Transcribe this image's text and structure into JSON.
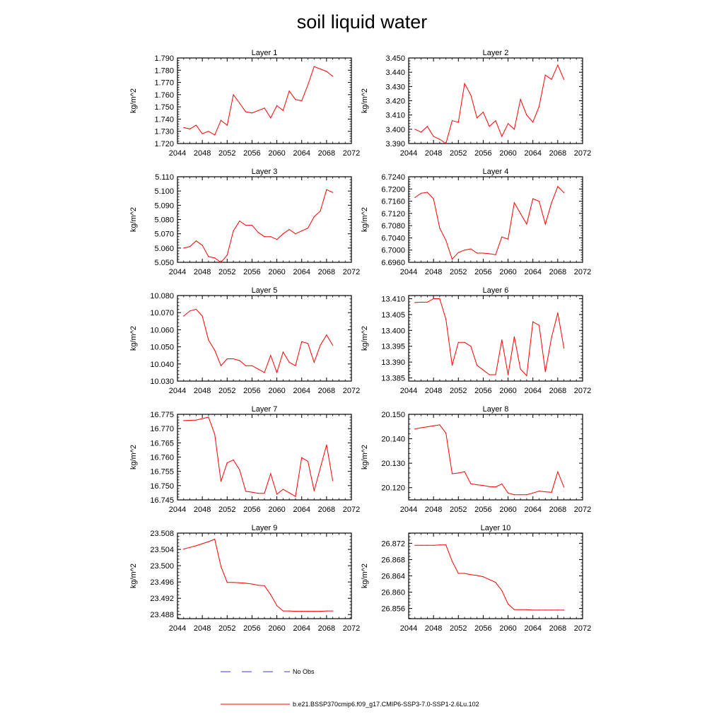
{
  "figure": {
    "title": "soil liquid water",
    "legend": [
      {
        "label": "No Obs",
        "style": "dashed",
        "color": "#3b3bd6"
      },
      {
        "label": "b.e21.BSSP370cmip6.f09_g17.CMIP6-SSP3-7.0-SSP1-2.6Lu.102",
        "style": "solid",
        "color": "#ff0000"
      }
    ]
  },
  "chart_data": [
    {
      "type": "line",
      "title": "Layer 1",
      "ylabel": "kg/m^2",
      "xlim": [
        2044,
        2072
      ],
      "ylim": [
        1.72,
        1.79
      ],
      "xticks": [
        "2044",
        "2048",
        "2052",
        "2056",
        "2060",
        "2064",
        "2068",
        "2072"
      ],
      "yticks": [
        "1.720",
        "1.730",
        "1.740",
        "1.750",
        "1.760",
        "1.770",
        "1.780",
        "1.790"
      ],
      "x": [
        2045,
        2046,
        2047,
        2048,
        2049,
        2050,
        2051,
        2052,
        2053,
        2054,
        2055,
        2056,
        2057,
        2058,
        2059,
        2060,
        2061,
        2062,
        2063,
        2064,
        2065,
        2066,
        2067,
        2068,
        2069
      ],
      "series": [
        {
          "values": [
            1.733,
            1.732,
            1.735,
            1.728,
            1.73,
            1.727,
            1.739,
            1.735,
            1.76,
            1.753,
            1.746,
            1.745,
            1.747,
            1.749,
            1.741,
            1.751,
            1.747,
            1.763,
            1.756,
            1.755,
            1.768,
            1.783,
            1.781,
            1.779,
            1.775
          ]
        }
      ]
    },
    {
      "type": "line",
      "title": "Layer 2",
      "ylabel": "kg/m^2",
      "xlim": [
        2044,
        2072
      ],
      "ylim": [
        3.39,
        3.45
      ],
      "xticks": [
        "2044",
        "2048",
        "2052",
        "2056",
        "2060",
        "2064",
        "2068",
        "2072"
      ],
      "yticks": [
        "3.390",
        "3.400",
        "3.410",
        "3.420",
        "3.430",
        "3.440",
        "3.450"
      ],
      "x": [
        2045,
        2046,
        2047,
        2048,
        2049,
        2050,
        2051,
        2052,
        2053,
        2054,
        2055,
        2056,
        2057,
        2058,
        2059,
        2060,
        2061,
        2062,
        2063,
        2064,
        2065,
        2066,
        2067,
        2068,
        2069
      ],
      "series": [
        {
          "values": [
            3.4,
            3.398,
            3.402,
            3.395,
            3.393,
            3.39,
            3.406,
            3.405,
            3.432,
            3.424,
            3.408,
            3.412,
            3.402,
            3.406,
            3.395,
            3.404,
            3.4,
            3.421,
            3.41,
            3.405,
            3.416,
            3.438,
            3.435,
            3.445,
            3.435
          ]
        }
      ]
    },
    {
      "type": "line",
      "title": "Layer 3",
      "ylabel": "kg/m^2",
      "xlim": [
        2044,
        2072
      ],
      "ylim": [
        5.05,
        5.11
      ],
      "xticks": [
        "2044",
        "2048",
        "2052",
        "2056",
        "2060",
        "2064",
        "2068",
        "2072"
      ],
      "yticks": [
        "5.050",
        "5.060",
        "5.070",
        "5.080",
        "5.090",
        "5.100",
        "5.110"
      ],
      "x": [
        2045,
        2046,
        2047,
        2048,
        2049,
        2050,
        2051,
        2052,
        2053,
        2054,
        2055,
        2056,
        2057,
        2058,
        2059,
        2060,
        2061,
        2062,
        2063,
        2064,
        2065,
        2066,
        2067,
        2068,
        2069
      ],
      "series": [
        {
          "values": [
            5.06,
            5.061,
            5.065,
            5.062,
            5.054,
            5.053,
            5.05,
            5.055,
            5.072,
            5.079,
            5.076,
            5.076,
            5.071,
            5.068,
            5.068,
            5.066,
            5.07,
            5.073,
            5.07,
            5.072,
            5.074,
            5.082,
            5.086,
            5.101,
            5.099
          ]
        }
      ]
    },
    {
      "type": "line",
      "title": "Layer 4",
      "ylabel": "kg/m^2",
      "xlim": [
        2044,
        2072
      ],
      "ylim": [
        6.696,
        6.724
      ],
      "xticks": [
        "2044",
        "2048",
        "2052",
        "2056",
        "2060",
        "2064",
        "2068",
        "2072"
      ],
      "yticks": [
        "6.6960",
        "6.7000",
        "6.7040",
        "6.7080",
        "6.7120",
        "6.7160",
        "6.7200",
        "6.7240"
      ],
      "x": [
        2045,
        2046,
        2047,
        2048,
        2049,
        2050,
        2051,
        2052,
        2053,
        2054,
        2055,
        2056,
        2057,
        2058,
        2059,
        2060,
        2061,
        2062,
        2063,
        2064,
        2065,
        2066,
        2067,
        2068,
        2069
      ],
      "series": [
        {
          "values": [
            6.7172,
            6.7186,
            6.7189,
            6.7168,
            6.7072,
            6.7032,
            6.697,
            6.6992,
            6.7,
            6.7004,
            6.699,
            6.699,
            6.6988,
            6.6985,
            6.7043,
            6.7036,
            6.7155,
            6.712,
            6.7085,
            6.7168,
            6.716,
            6.7085,
            6.7155,
            6.7208,
            6.7188
          ]
        }
      ]
    },
    {
      "type": "line",
      "title": "Layer 5",
      "ylabel": "kg/m^2",
      "xlim": [
        2044,
        2072
      ],
      "ylim": [
        10.03,
        10.08
      ],
      "xticks": [
        "2044",
        "2048",
        "2052",
        "2056",
        "2060",
        "2064",
        "2068",
        "2072"
      ],
      "yticks": [
        "10.030",
        "10.040",
        "10.050",
        "10.060",
        "10.070",
        "10.080"
      ],
      "x": [
        2045,
        2046,
        2047,
        2048,
        2049,
        2050,
        2051,
        2052,
        2053,
        2054,
        2055,
        2056,
        2057,
        2058,
        2059,
        2060,
        2061,
        2062,
        2063,
        2064,
        2065,
        2066,
        2067,
        2068,
        2069
      ],
      "series": [
        {
          "values": [
            10.068,
            10.071,
            10.072,
            10.068,
            10.054,
            10.048,
            10.039,
            10.043,
            10.043,
            10.042,
            10.039,
            10.039,
            10.037,
            10.035,
            10.045,
            10.035,
            10.047,
            10.041,
            10.039,
            10.053,
            10.052,
            10.041,
            10.051,
            10.057,
            10.051
          ]
        }
      ]
    },
    {
      "type": "line",
      "title": "Layer 6",
      "ylabel": "kg/m^2",
      "xlim": [
        2044,
        2072
      ],
      "ylim": [
        13.384,
        13.411
      ],
      "xticks": [
        "2044",
        "2048",
        "2052",
        "2056",
        "2060",
        "2064",
        "2068",
        "2072"
      ],
      "yticks": [
        "13.385",
        "13.390",
        "13.395",
        "13.400",
        "13.405",
        "13.410"
      ],
      "x": [
        2045,
        2046,
        2047,
        2048,
        2049,
        2050,
        2051,
        2052,
        2053,
        2054,
        2055,
        2056,
        2057,
        2058,
        2059,
        2060,
        2061,
        2062,
        2063,
        2064,
        2065,
        2066,
        2067,
        2068,
        2069
      ],
      "series": [
        {
          "values": [
            13.4088,
            13.4089,
            13.4089,
            13.41,
            13.41,
            13.4035,
            13.389,
            13.3962,
            13.3962,
            13.395,
            13.389,
            13.3875,
            13.386,
            13.386,
            13.397,
            13.386,
            13.398,
            13.3878,
            13.3857,
            13.4027,
            13.4016,
            13.387,
            13.3978,
            13.4055,
            13.3944
          ]
        }
      ]
    },
    {
      "type": "line",
      "title": "Layer 7",
      "ylabel": "kg/m^2",
      "xlim": [
        2044,
        2072
      ],
      "ylim": [
        16.745,
        16.775
      ],
      "xticks": [
        "2044",
        "2048",
        "2052",
        "2056",
        "2060",
        "2064",
        "2068",
        "2072"
      ],
      "yticks": [
        "16.745",
        "16.750",
        "16.755",
        "16.760",
        "16.765",
        "16.770",
        "16.775"
      ],
      "x": [
        2045,
        2046,
        2047,
        2048,
        2049,
        2050,
        2051,
        2052,
        2053,
        2054,
        2055,
        2056,
        2057,
        2058,
        2059,
        2060,
        2061,
        2062,
        2063,
        2064,
        2065,
        2066,
        2067,
        2068,
        2069
      ],
      "series": [
        {
          "values": [
            16.7728,
            16.7729,
            16.773,
            16.7735,
            16.774,
            16.768,
            16.7515,
            16.758,
            16.759,
            16.7555,
            16.748,
            16.7477,
            16.7473,
            16.7473,
            16.7542,
            16.747,
            16.7487,
            16.7475,
            16.7462,
            16.7598,
            16.7585,
            16.7482,
            16.7562,
            16.7643,
            16.7517
          ]
        }
      ]
    },
    {
      "type": "line",
      "title": "Layer 8",
      "ylabel": "kg/m^2",
      "xlim": [
        2044,
        2072
      ],
      "ylim": [
        20.115,
        20.15
      ],
      "xticks": [
        "2044",
        "2048",
        "2052",
        "2056",
        "2060",
        "2064",
        "2068",
        "2072"
      ],
      "yticks": [
        "20.120",
        "20.130",
        "20.140",
        "20.150"
      ],
      "x": [
        2045,
        2046,
        2047,
        2048,
        2049,
        2050,
        2051,
        2052,
        2053,
        2054,
        2055,
        2056,
        2057,
        2058,
        2059,
        2060,
        2061,
        2062,
        2063,
        2064,
        2065,
        2066,
        2067,
        2068,
        2069
      ],
      "series": [
        {
          "values": [
            20.144,
            20.1445,
            20.1449,
            20.1453,
            20.1457,
            20.1423,
            20.1257,
            20.126,
            20.1265,
            20.1216,
            20.1212,
            20.1209,
            20.1204,
            20.1203,
            20.1215,
            20.1178,
            20.1171,
            20.1171,
            20.1171,
            20.1178,
            20.1186,
            20.1183,
            20.1181,
            20.1265,
            20.1202
          ]
        }
      ]
    },
    {
      "type": "line",
      "title": "Layer 9",
      "ylabel": "kg/m^2",
      "xlim": [
        2044,
        2072
      ],
      "ylim": [
        23.487,
        23.508
      ],
      "xticks": [
        "2044",
        "2048",
        "2052",
        "2056",
        "2060",
        "2064",
        "2068",
        "2072"
      ],
      "yticks": [
        "23.488",
        "23.492",
        "23.496",
        "23.500",
        "23.504",
        "23.508"
      ],
      "x": [
        2045,
        2046,
        2047,
        2048,
        2049,
        2050,
        2051,
        2052,
        2053,
        2054,
        2055,
        2056,
        2057,
        2058,
        2059,
        2060,
        2061,
        2062,
        2063,
        2064,
        2065,
        2066,
        2067,
        2068,
        2069
      ],
      "series": [
        {
          "values": [
            23.5041,
            23.5045,
            23.5049,
            23.5054,
            23.5059,
            23.5065,
            23.4998,
            23.4959,
            23.4959,
            23.4958,
            23.4957,
            23.4955,
            23.4952,
            23.4951,
            23.4929,
            23.4902,
            23.4889,
            23.4889,
            23.4888,
            23.4888,
            23.4888,
            23.4888,
            23.4888,
            23.4889,
            23.4889
          ]
        }
      ]
    },
    {
      "type": "line",
      "title": "Layer 10",
      "ylabel": "kg/m^2",
      "xlim": [
        2044,
        2072
      ],
      "ylim": [
        26.8535,
        26.8745
      ],
      "xticks": [
        "2044",
        "2048",
        "2052",
        "2056",
        "2060",
        "2064",
        "2068",
        "2072"
      ],
      "yticks": [
        "26.856",
        "26.860",
        "26.864",
        "26.868",
        "26.872"
      ],
      "x": [
        2045,
        2046,
        2047,
        2048,
        2049,
        2050,
        2051,
        2052,
        2053,
        2054,
        2055,
        2056,
        2057,
        2058,
        2059,
        2060,
        2061,
        2062,
        2063,
        2064,
        2065,
        2066,
        2067,
        2068,
        2069
      ],
      "series": [
        {
          "values": [
            26.8715,
            26.8715,
            26.8715,
            26.8715,
            26.8716,
            26.8716,
            26.8676,
            26.8646,
            26.8646,
            26.8643,
            26.8641,
            26.8638,
            26.8631,
            26.8624,
            26.8604,
            26.8571,
            26.8557,
            26.8557,
            26.8557,
            26.8556,
            26.8556,
            26.8556,
            26.8556,
            26.8556,
            26.8556
          ]
        }
      ]
    }
  ]
}
